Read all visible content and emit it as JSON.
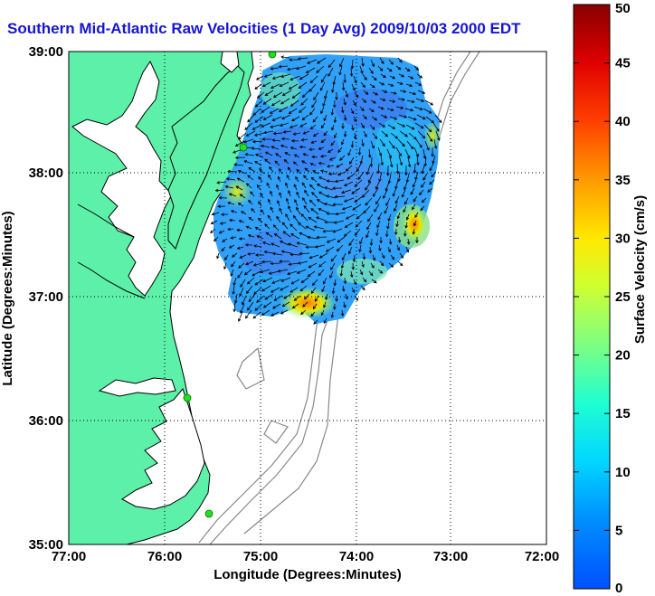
{
  "title": "Southern Mid-Atlantic Raw Velocities (1 Day Avg) 2009/10/03 2000 EDT",
  "map": {
    "x_axis_label": "Longitude (Degrees:Minutes)",
    "y_axis_label": "Latitude (Degrees:Minutes)",
    "x_ticks": [
      "77:00",
      "76:00",
      "75:00",
      "74:00",
      "73:00",
      "72:00"
    ],
    "y_ticks": [
      "39:00",
      "38:00",
      "37:00",
      "36:00",
      "35:00"
    ],
    "grid": "dotted",
    "land_color": "#5cf0a8",
    "coastline_color": "#000000",
    "bathymetry_color": "#888888"
  },
  "colorbar": {
    "label": "Surface Velocity (cm/s)",
    "ticks": [
      "0",
      "5",
      "10",
      "15",
      "20",
      "25",
      "30",
      "35",
      "40",
      "45",
      "50"
    ],
    "min": 0,
    "max": 50,
    "colormap": "jet"
  },
  "stations": [
    "station-1",
    "station-2",
    "station-3",
    "station-4"
  ],
  "station_color": "#22e022"
}
